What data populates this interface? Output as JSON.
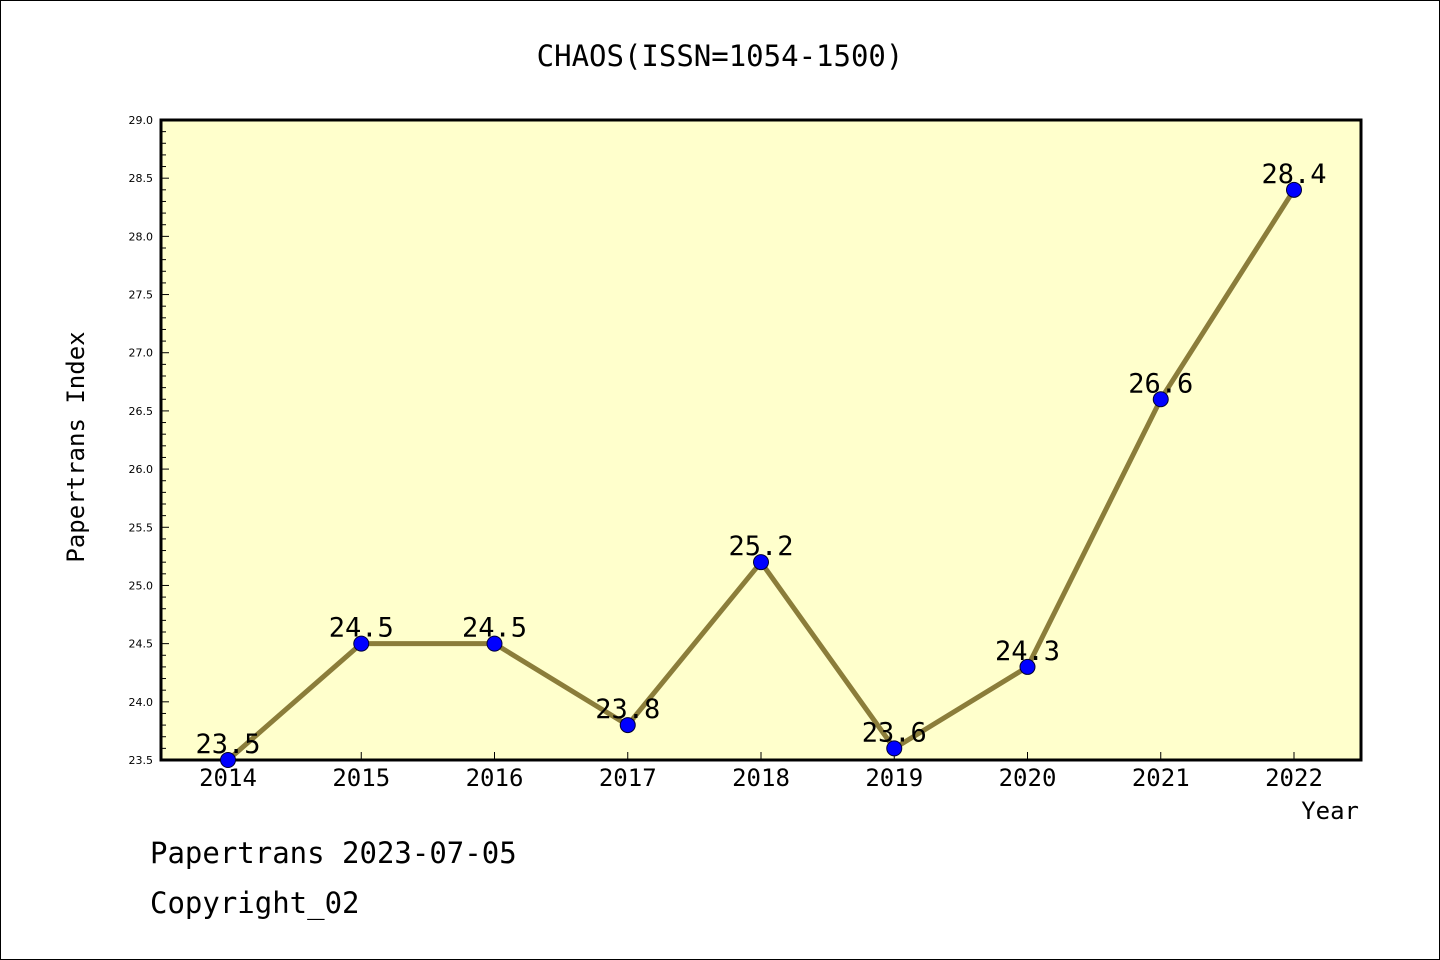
{
  "chart_data": {
    "type": "line",
    "title": "CHAOS(ISSN=1054-1500)",
    "xlabel": "Year",
    "ylabel": "Papertrans Index",
    "categories": [
      "2014",
      "2015",
      "2016",
      "2017",
      "2018",
      "2019",
      "2020",
      "2021",
      "2022"
    ],
    "series": [
      {
        "values": [
          23.5,
          24.5,
          24.5,
          23.8,
          25.2,
          23.6,
          24.3,
          26.6,
          28.4
        ]
      }
    ],
    "data_labels": [
      "23.5",
      "24.5",
      "24.5",
      "23.8",
      "25.2",
      "23.6",
      "24.3",
      "26.6",
      "28.4"
    ],
    "ylim": [
      23.5,
      29.0
    ],
    "yticks": [
      "23.5",
      "24.0",
      "24.5",
      "25.0",
      "25.5",
      "26.0",
      "26.5",
      "27.0",
      "27.5",
      "28.0",
      "28.5",
      "29.0"
    ],
    "grid": false,
    "colors": {
      "plot_background": "#ffffcc",
      "line": "#8b7d3a",
      "marker": "#0000ff"
    }
  },
  "footer": {
    "line1": "Papertrans 2023-07-05",
    "line2": "Copyright_02"
  }
}
